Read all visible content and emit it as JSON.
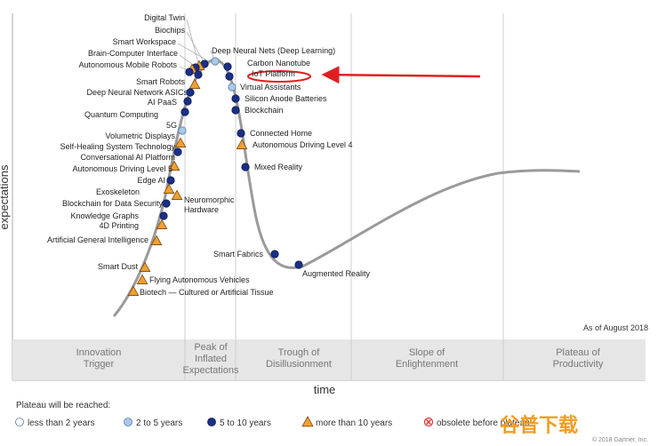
{
  "chart_data": {
    "type": "scatter",
    "xlabel": "time",
    "ylabel": "expectations",
    "as_of": "As of August 2018",
    "phases": [
      "Innovation Trigger",
      "Peak of Inflated Expectations",
      "Trough of Disillusionment",
      "Slope of Enlightenment",
      "Plateau of Productivity"
    ],
    "legend_title": "Plateau will be reached:",
    "legend": [
      {
        "key": "lt2",
        "label": "less than 2 years",
        "shape": "circle",
        "color": "#ffffff"
      },
      {
        "key": "2to5",
        "label": "2 to 5 years",
        "shape": "circle",
        "color": "#a9c8e8"
      },
      {
        "key": "5to10",
        "label": "5 to 10 years",
        "shape": "circle",
        "color": "#1b2f86"
      },
      {
        "key": "gt10",
        "label": "more than 10 years",
        "shape": "triangle",
        "color": "#f0a030"
      },
      {
        "key": "obsolete",
        "label": "obsolete before plateau",
        "shape": "x-circle",
        "color": "#e03030"
      }
    ],
    "points": [
      {
        "label": "Digital Twin",
        "cat": "5to10"
      },
      {
        "label": "Biochips",
        "cat": "gt10"
      },
      {
        "label": "Smart Workspace",
        "cat": "5to10"
      },
      {
        "label": "Brain-Computer Interface",
        "cat": "gt10"
      },
      {
        "label": "Autonomous Mobile Robots",
        "cat": "5to10"
      },
      {
        "label": "Smart Robots",
        "cat": "5to10"
      },
      {
        "label": "Deep Neural Network ASICs",
        "cat": "gt10"
      },
      {
        "label": "AI PaaS",
        "cat": "5to10"
      },
      {
        "label": "Quantum Computing",
        "cat": "5to10"
      },
      {
        "label": "5G",
        "cat": "5to10"
      },
      {
        "label": "Volumetric Displays",
        "cat": "2to5"
      },
      {
        "label": "Self-Healing System Technology",
        "cat": "gt10"
      },
      {
        "label": "Conversational AI Platform",
        "cat": "5to10"
      },
      {
        "label": "Autonomous Driving Level 5",
        "cat": "gt10"
      },
      {
        "label": "Edge AI",
        "cat": "5to10"
      },
      {
        "label": "Exoskeleton",
        "cat": "gt10"
      },
      {
        "label": "Blockchain for Data Security",
        "cat": "5to10"
      },
      {
        "label": "Knowledge Graphs",
        "cat": "5to10"
      },
      {
        "label": "4D Printing",
        "cat": "gt10"
      },
      {
        "label": "Artificial General Intelligence",
        "cat": "gt10"
      },
      {
        "label": "Smart Dust",
        "cat": "gt10"
      },
      {
        "label": "Flying Autonomous Vehicles",
        "cat": "gt10"
      },
      {
        "label": "Biotech — Cultured or Artificial Tissue",
        "cat": "gt10"
      },
      {
        "label": "Neuromorphic Hardware",
        "cat": "gt10"
      },
      {
        "label": "Deep Neural Nets (Deep Learning)",
        "cat": "2to5"
      },
      {
        "label": "Carbon Nanotube",
        "cat": "5to10"
      },
      {
        "label": "IoT Platform",
        "cat": "5to10"
      },
      {
        "label": "Virtual Assistants",
        "cat": "2to5"
      },
      {
        "label": "Silicon Anode Batteries",
        "cat": "5to10"
      },
      {
        "label": "Blockchain",
        "cat": "5to10"
      },
      {
        "label": "Connected Home",
        "cat": "5to10"
      },
      {
        "label": "Autonomous Driving Level 4",
        "cat": "gt10"
      },
      {
        "label": "Mixed Reality",
        "cat": "5to10"
      },
      {
        "label": "Smart Fabrics",
        "cat": "5to10"
      },
      {
        "label": "Augmented Reality",
        "cat": "5to10"
      }
    ],
    "highlight": "IoT Platform"
  },
  "watermark": "谷普下载",
  "copyright": "© 2018 Gartner, Inc."
}
